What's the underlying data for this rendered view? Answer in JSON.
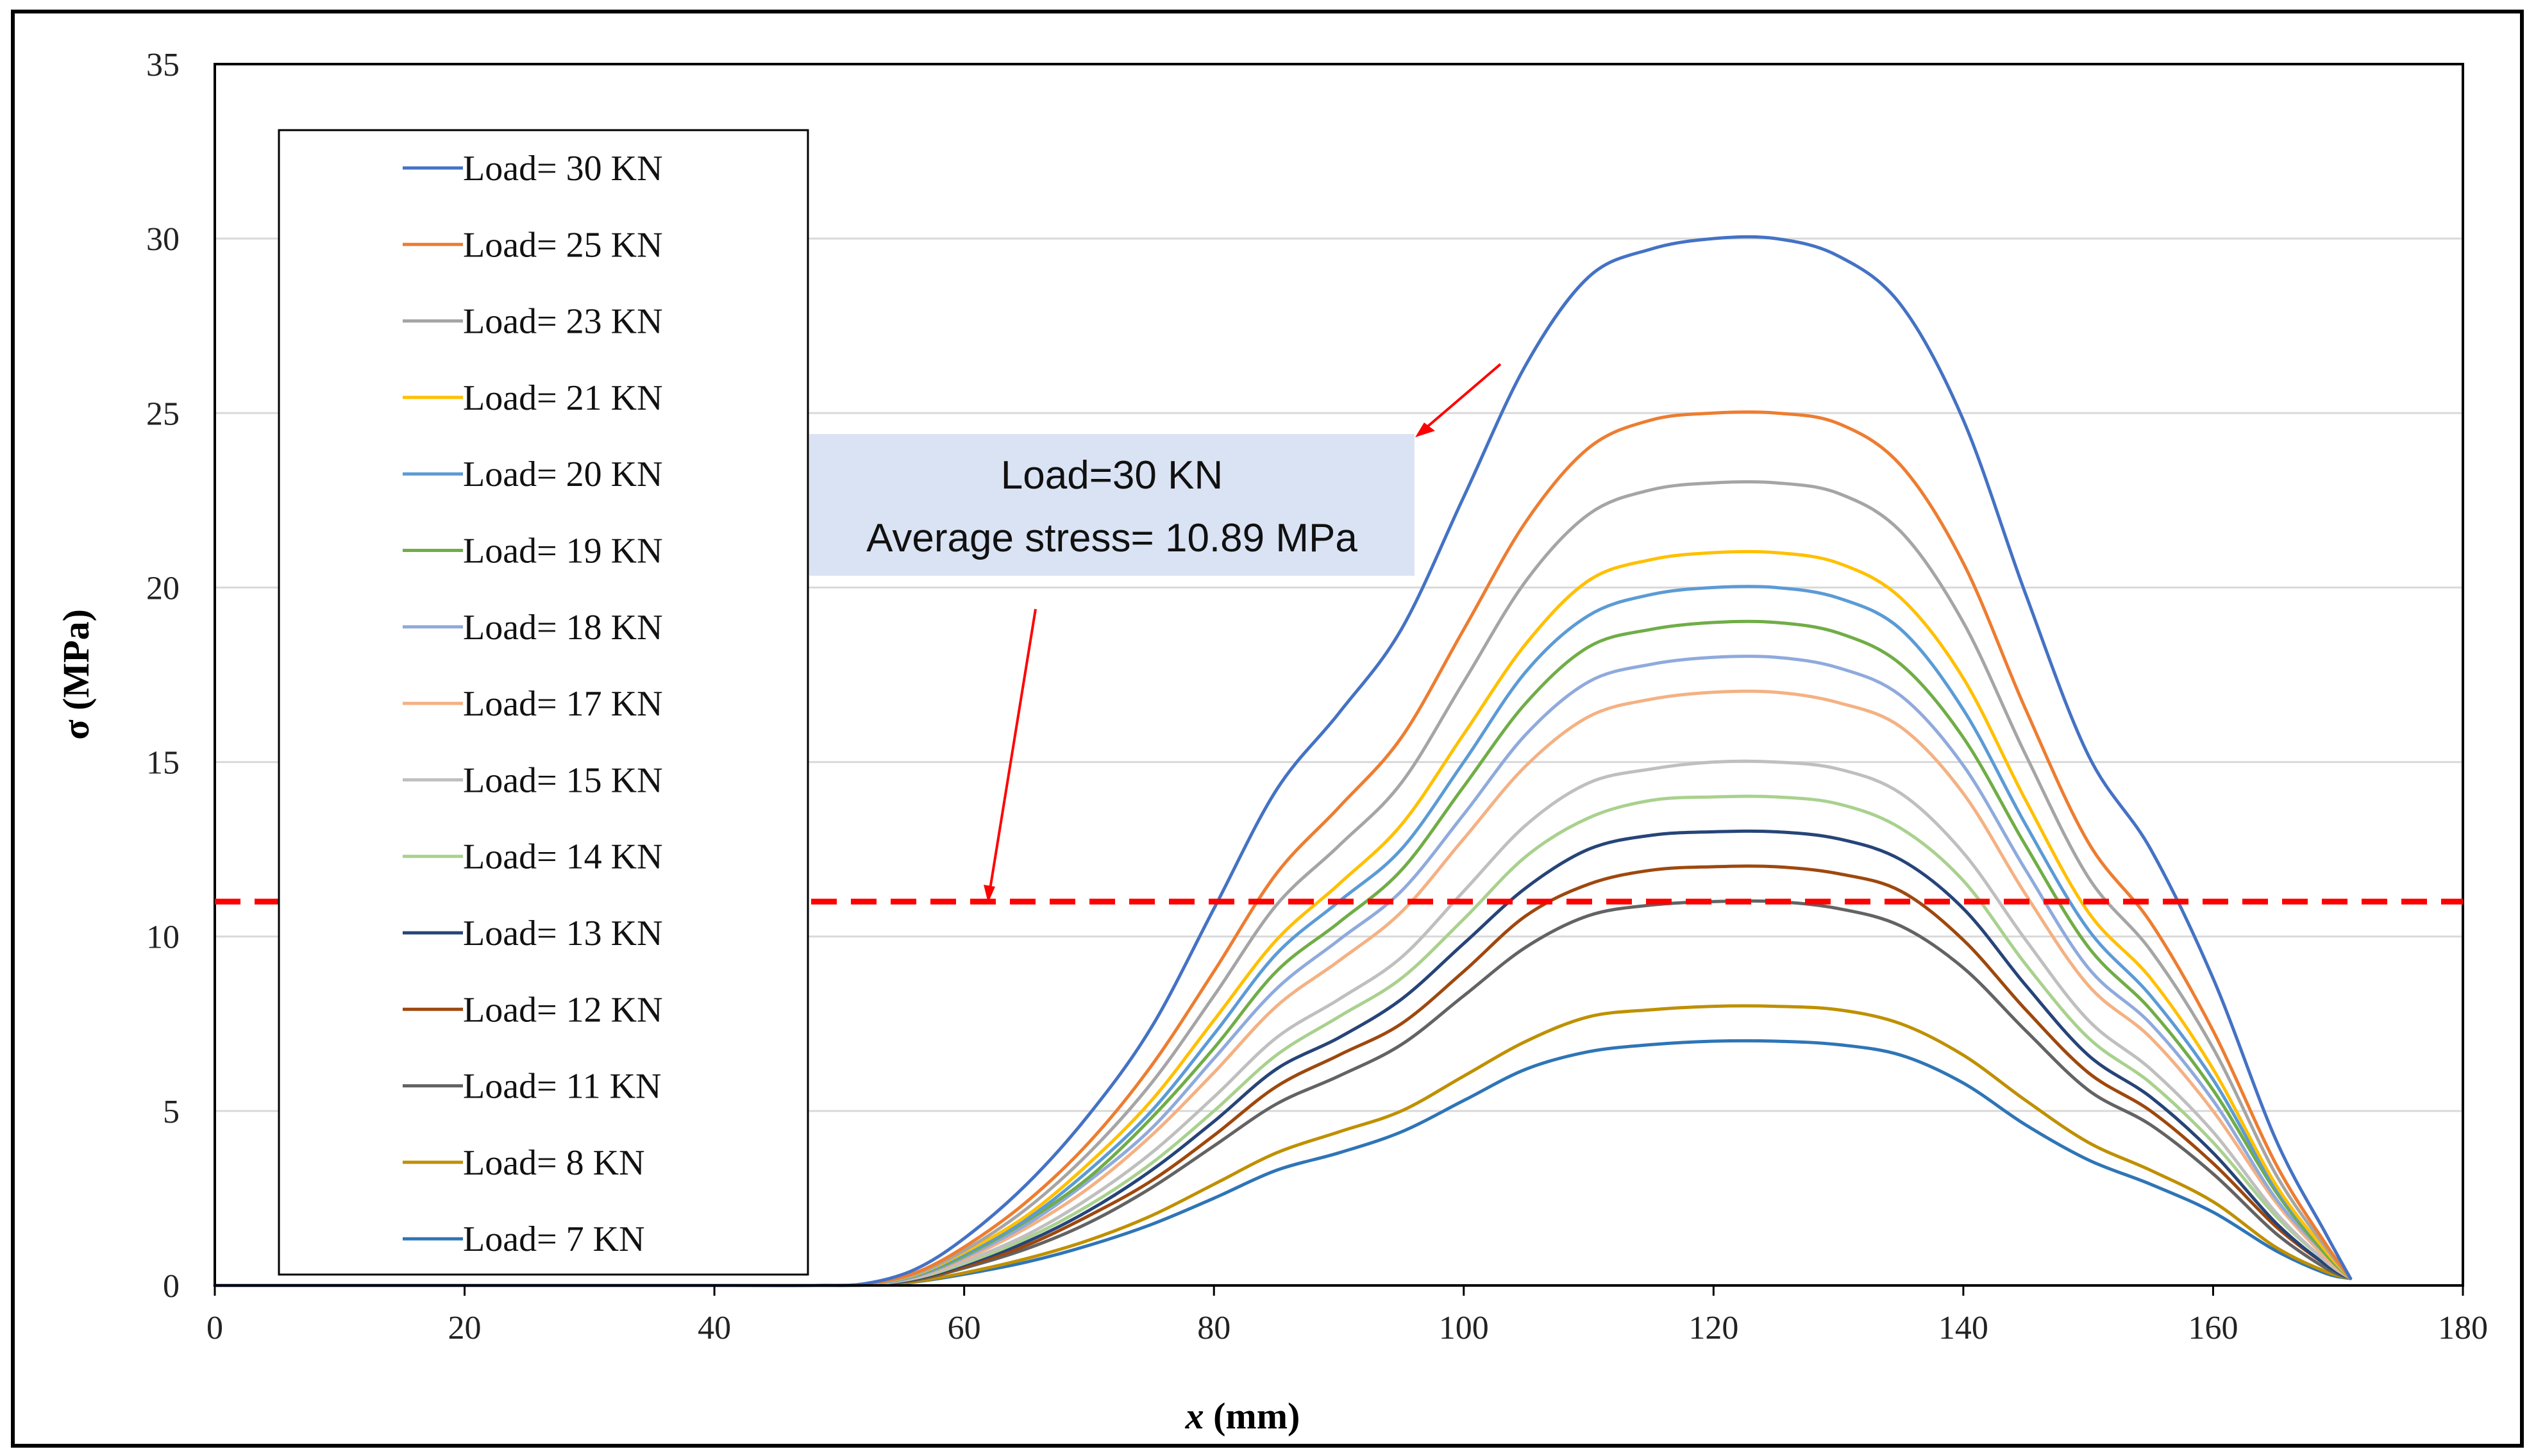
{
  "chart_data": {
    "type": "line",
    "title": "",
    "xlabel": "x (mm)",
    "xlabel_var": "x",
    "xlabel_unit": " (mm)",
    "ylabel": "σ (MPa)",
    "xlim": [
      0,
      180
    ],
    "ylim": [
      0,
      35
    ],
    "xticks": [
      0,
      20,
      40,
      60,
      80,
      100,
      120,
      140,
      160,
      180
    ],
    "yticks": [
      0,
      5,
      10,
      15,
      20,
      25,
      30,
      35
    ],
    "grid": "horizontal",
    "legend_position": "top-left",
    "x": [
      0,
      10,
      20,
      30,
      40,
      48,
      52,
      56,
      60,
      65,
      70,
      75,
      80,
      85,
      90,
      95,
      100,
      105,
      110,
      115,
      120,
      125,
      130,
      135,
      140,
      145,
      150,
      155,
      160,
      165,
      169,
      171
    ],
    "series": [
      {
        "name": "Load= 30 KN",
        "color": "#4472C4",
        "values": [
          0,
          0,
          0,
          0,
          0,
          0,
          0.05,
          0.45,
          1.35,
          2.9,
          4.9,
          7.4,
          10.8,
          14.2,
          16.4,
          18.8,
          22.6,
          26.4,
          28.9,
          29.7,
          30.0,
          30.0,
          29.5,
          28.1,
          24.8,
          19.8,
          15.2,
          12.5,
          8.8,
          4.2,
          1.5,
          0.2
        ]
      },
      {
        "name": "Load= 25 KN",
        "color": "#ED7D31",
        "values": [
          0,
          0,
          0,
          0,
          0,
          0,
          0.04,
          0.35,
          1.1,
          2.4,
          4.1,
          6.3,
          9.0,
          11.8,
          13.7,
          15.7,
          18.8,
          21.9,
          24.0,
          24.8,
          25.0,
          25.0,
          24.7,
          23.5,
          20.7,
          16.5,
          12.7,
          10.4,
          7.3,
          3.5,
          1.2,
          0.2
        ]
      },
      {
        "name": "Load= 23 KN",
        "color": "#A5A5A5",
        "values": [
          0,
          0,
          0,
          0,
          0,
          0,
          0.04,
          0.32,
          1.0,
          2.2,
          3.8,
          5.8,
          8.3,
          10.9,
          12.6,
          14.4,
          17.3,
          20.2,
          22.1,
          22.8,
          23.0,
          23.0,
          22.7,
          21.6,
          19.0,
          15.2,
          11.7,
          9.6,
          6.8,
          3.2,
          1.1,
          0.2
        ]
      },
      {
        "name": "Load= 21 KN",
        "color": "#FFC000",
        "values": [
          0,
          0,
          0,
          0,
          0,
          0,
          0.04,
          0.3,
          0.95,
          2.0,
          3.5,
          5.3,
          7.6,
          9.9,
          11.5,
          13.2,
          15.8,
          18.4,
          20.2,
          20.8,
          21.0,
          21.0,
          20.7,
          19.7,
          17.4,
          13.9,
          10.7,
          8.8,
          6.2,
          2.9,
          1.0,
          0.2
        ]
      },
      {
        "name": "Load= 20 KN",
        "color": "#5B9BD5",
        "values": [
          0,
          0,
          0,
          0,
          0,
          0,
          0.03,
          0.28,
          0.9,
          1.9,
          3.3,
          5.0,
          7.2,
          9.5,
          11.0,
          12.5,
          15.0,
          17.6,
          19.2,
          19.8,
          20.0,
          20.0,
          19.7,
          18.8,
          16.5,
          13.2,
          10.2,
          8.3,
          5.9,
          2.8,
          1.0,
          0.2
        ]
      },
      {
        "name": "Load= 19 KN",
        "color": "#70AD47",
        "values": [
          0,
          0,
          0,
          0,
          0,
          0,
          0.03,
          0.27,
          0.85,
          1.85,
          3.1,
          4.8,
          6.8,
          9.0,
          10.4,
          11.9,
          14.3,
          16.7,
          18.3,
          18.8,
          19.0,
          19.0,
          18.7,
          17.8,
          15.7,
          12.6,
          9.7,
          7.9,
          5.6,
          2.7,
          0.9,
          0.2
        ]
      },
      {
        "name": "Load= 18 KN",
        "color": "#8FAADC",
        "values": [
          0,
          0,
          0,
          0,
          0,
          0,
          0.03,
          0.25,
          0.8,
          1.75,
          3.0,
          4.5,
          6.5,
          8.5,
          9.9,
          11.3,
          13.5,
          15.8,
          17.3,
          17.8,
          18.0,
          18.0,
          17.7,
          16.9,
          14.9,
          11.9,
          9.1,
          7.5,
          5.3,
          2.5,
          0.9,
          0.2
        ]
      },
      {
        "name": "Load= 17 KN",
        "color": "#F4B183",
        "values": [
          0,
          0,
          0,
          0,
          0,
          0,
          0.03,
          0.24,
          0.75,
          1.65,
          2.8,
          4.3,
          6.1,
          8.0,
          9.3,
          10.7,
          12.8,
          14.9,
          16.3,
          16.8,
          17.0,
          17.0,
          16.7,
          16.0,
          14.1,
          11.2,
          8.6,
          7.1,
          5.0,
          2.4,
          0.8,
          0.2
        ]
      },
      {
        "name": "Load= 15 KN",
        "color": "#BFBFBF",
        "values": [
          0,
          0,
          0,
          0,
          0,
          0,
          0.03,
          0.21,
          0.68,
          1.45,
          2.5,
          3.8,
          5.4,
          7.1,
          8.2,
          9.4,
          11.3,
          13.2,
          14.4,
          14.8,
          15.0,
          15.0,
          14.8,
          14.1,
          12.4,
          9.9,
          7.6,
          6.2,
          4.4,
          2.1,
          0.7,
          0.2
        ]
      },
      {
        "name": "Load= 14 KN",
        "color": "#A9D18E",
        "values": [
          0,
          0,
          0,
          0,
          0,
          0,
          0.02,
          0.2,
          0.63,
          1.35,
          2.3,
          3.5,
          5.0,
          6.6,
          7.7,
          8.8,
          10.5,
          12.3,
          13.4,
          13.9,
          14.0,
          14.0,
          13.8,
          13.1,
          11.6,
          9.2,
          7.1,
          5.8,
          4.1,
          2.0,
          0.7,
          0.2
        ]
      },
      {
        "name": "Load= 13 KN",
        "color": "#264478",
        "values": [
          0,
          0,
          0,
          0,
          0,
          0,
          0.02,
          0.18,
          0.59,
          1.25,
          2.15,
          3.3,
          4.7,
          6.2,
          7.1,
          8.2,
          9.8,
          11.4,
          12.5,
          12.9,
          13.0,
          13.0,
          12.8,
          12.2,
          10.8,
          8.6,
          6.6,
          5.4,
          3.8,
          1.8,
          0.6,
          0.2
        ]
      },
      {
        "name": "Load= 12 KN",
        "color": "#9E480E",
        "values": [
          0,
          0,
          0,
          0,
          0,
          0,
          0.02,
          0.17,
          0.54,
          1.15,
          2.0,
          3.0,
          4.3,
          5.7,
          6.6,
          7.5,
          9.0,
          10.6,
          11.5,
          11.9,
          12.0,
          12.0,
          11.8,
          11.3,
          9.9,
          7.9,
          6.1,
          5.0,
          3.5,
          1.7,
          0.6,
          0.2
        ]
      },
      {
        "name": "Load= 11 KN",
        "color": "#636363",
        "values": [
          0,
          0,
          0,
          0,
          0,
          0,
          0.02,
          0.15,
          0.5,
          1.05,
          1.8,
          2.8,
          4.0,
          5.2,
          6.0,
          6.9,
          8.3,
          9.7,
          10.6,
          10.9,
          11.0,
          11.0,
          10.8,
          10.3,
          9.1,
          7.3,
          5.6,
          4.6,
          3.2,
          1.5,
          0.5,
          0.2
        ]
      },
      {
        "name": "Load= 8 KN",
        "color": "#BF9000",
        "values": [
          0,
          0,
          0,
          0,
          0,
          0,
          0.01,
          0.11,
          0.36,
          0.77,
          1.3,
          2.0,
          2.9,
          3.8,
          4.4,
          5.0,
          6.0,
          7.0,
          7.7,
          7.9,
          8.0,
          8.0,
          7.9,
          7.5,
          6.6,
          5.3,
          4.1,
          3.3,
          2.4,
          1.1,
          0.4,
          0.2
        ]
      },
      {
        "name": "Load= 7 KN",
        "color": "#2E75B6",
        "values": [
          0,
          0,
          0,
          0,
          0,
          0,
          0.01,
          0.1,
          0.32,
          0.67,
          1.15,
          1.75,
          2.5,
          3.3,
          3.8,
          4.4,
          5.3,
          6.2,
          6.7,
          6.9,
          7.0,
          7.0,
          6.9,
          6.6,
          5.8,
          4.6,
          3.6,
          2.9,
          2.1,
          1.0,
          0.35,
          0.2
        ]
      }
    ],
    "reference_line": {
      "y": 11.0,
      "color": "#FF0000",
      "style": "dashed"
    },
    "annotation": {
      "line1": "Load=30 KN",
      "line2": "Average stress= 10.89 MPa",
      "box_color": "#DAE3F3",
      "arrow_color": "#FF0000"
    }
  }
}
